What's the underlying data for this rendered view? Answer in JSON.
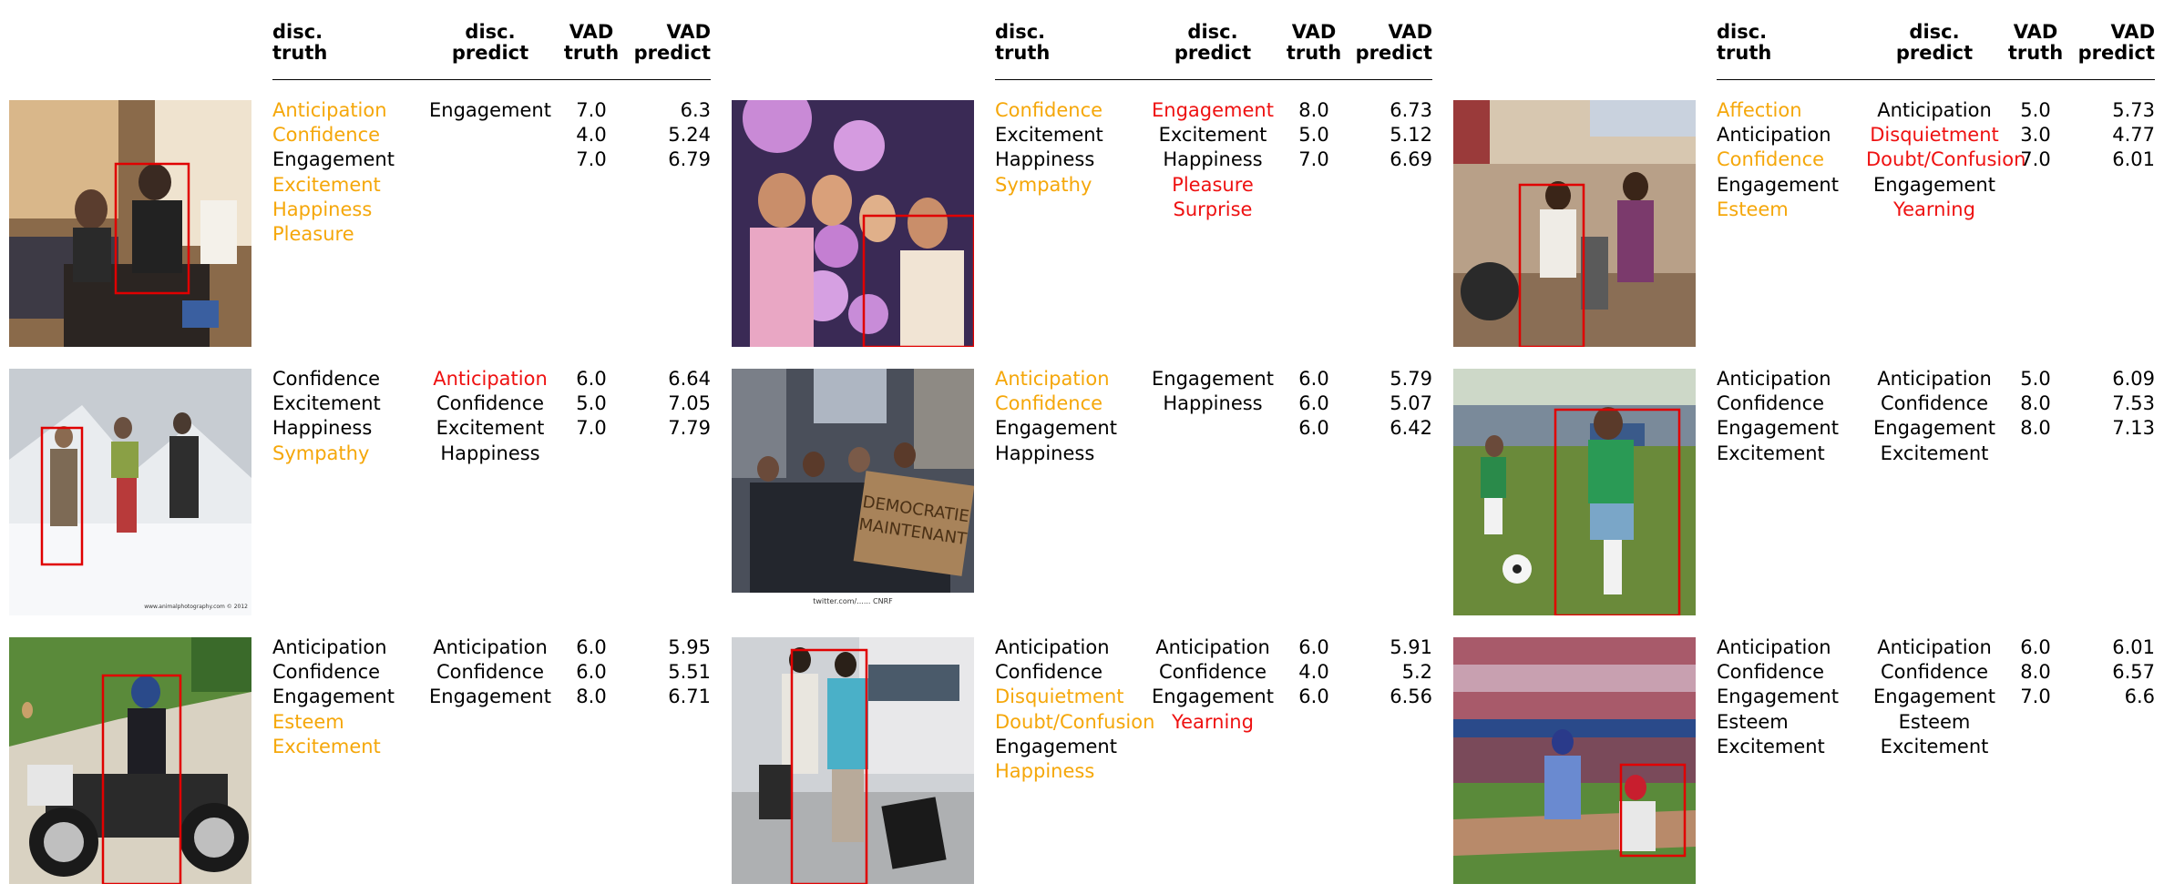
{
  "colors": {
    "mismatch_truth": "#f5a70a",
    "mismatch_predict": "#ee1111",
    "normal": "#000000"
  },
  "header": {
    "disc_truth": [
      "disc.",
      "truth"
    ],
    "disc_predict": [
      "disc.",
      "predict"
    ],
    "vad_truth": [
      "VAD",
      "truth"
    ],
    "vad_predict": [
      "VAD",
      "predict"
    ]
  },
  "panels": [
    {
      "truth": [
        {
          "t": "Anticipation",
          "s": "orange"
        },
        {
          "t": "Confidence",
          "s": "orange"
        },
        {
          "t": "Engagement",
          "s": ""
        },
        {
          "t": "Excitement",
          "s": "orange"
        },
        {
          "t": "Happiness",
          "s": "orange"
        },
        {
          "t": "Pleasure",
          "s": "orange"
        }
      ],
      "predict": [
        {
          "t": "Engagement",
          "s": ""
        }
      ],
      "vad_truth": [
        "7.0",
        "4.0",
        "7.0"
      ],
      "vad_predict": [
        "6.3",
        "5.24",
        "6.79"
      ]
    },
    {
      "truth": [
        {
          "t": "Confidence",
          "s": "orange"
        },
        {
          "t": "Excitement",
          "s": ""
        },
        {
          "t": "Happiness",
          "s": ""
        },
        {
          "t": "Sympathy",
          "s": "orange"
        }
      ],
      "predict": [
        {
          "t": "Engagement",
          "s": "red"
        },
        {
          "t": "Excitement",
          "s": ""
        },
        {
          "t": "Happiness",
          "s": ""
        },
        {
          "t": "Pleasure",
          "s": "red"
        },
        {
          "t": "Surprise",
          "s": "red"
        }
      ],
      "vad_truth": [
        "8.0",
        "5.0",
        "7.0"
      ],
      "vad_predict": [
        "6.73",
        "5.12",
        "6.69"
      ]
    },
    {
      "truth": [
        {
          "t": "Affection",
          "s": "orange"
        },
        {
          "t": "Anticipation",
          "s": ""
        },
        {
          "t": "Confidence",
          "s": "orange"
        },
        {
          "t": "Engagement",
          "s": ""
        },
        {
          "t": "Esteem",
          "s": "orange"
        }
      ],
      "predict": [
        {
          "t": "Anticipation",
          "s": ""
        },
        {
          "t": "Disquietment",
          "s": "red"
        },
        {
          "t": "Doubt/Confusion",
          "s": "red"
        },
        {
          "t": "Engagement",
          "s": ""
        },
        {
          "t": "Yearning",
          "s": "red"
        }
      ],
      "vad_truth": [
        "5.0",
        "3.0",
        "7.0"
      ],
      "vad_predict": [
        "5.73",
        "4.77",
        "6.01"
      ]
    },
    {
      "truth": [
        {
          "t": "Confidence",
          "s": ""
        },
        {
          "t": "Excitement",
          "s": ""
        },
        {
          "t": "Happiness",
          "s": ""
        },
        {
          "t": "Sympathy",
          "s": "orange"
        }
      ],
      "predict": [
        {
          "t": "Anticipation",
          "s": "red"
        },
        {
          "t": "Confidence",
          "s": ""
        },
        {
          "t": "Excitement",
          "s": ""
        },
        {
          "t": "Happiness",
          "s": ""
        }
      ],
      "vad_truth": [
        "6.0",
        "5.0",
        "7.0"
      ],
      "vad_predict": [
        "6.64",
        "7.05",
        "7.79"
      ],
      "caption": "www.animalphotography.com © 2012"
    },
    {
      "truth": [
        {
          "t": "Anticipation",
          "s": "orange"
        },
        {
          "t": "Confidence",
          "s": "orange"
        },
        {
          "t": "Engagement",
          "s": ""
        },
        {
          "t": "Happiness",
          "s": ""
        }
      ],
      "predict": [
        {
          "t": "Engagement",
          "s": ""
        },
        {
          "t": "Happiness",
          "s": ""
        }
      ],
      "vad_truth": [
        "6.0",
        "6.0",
        "6.0"
      ],
      "vad_predict": [
        "5.79",
        "5.07",
        "6.42"
      ],
      "caption": "twitter.com/......  CNRF"
    },
    {
      "truth": [
        {
          "t": "Anticipation",
          "s": ""
        },
        {
          "t": "Confidence",
          "s": ""
        },
        {
          "t": "Engagement",
          "s": ""
        },
        {
          "t": "Excitement",
          "s": ""
        }
      ],
      "predict": [
        {
          "t": "Anticipation",
          "s": ""
        },
        {
          "t": "Confidence",
          "s": ""
        },
        {
          "t": "Engagement",
          "s": ""
        },
        {
          "t": "Excitement",
          "s": ""
        }
      ],
      "vad_truth": [
        "5.0",
        "8.0",
        "8.0"
      ],
      "vad_predict": [
        "6.09",
        "7.53",
        "7.13"
      ]
    },
    {
      "truth": [
        {
          "t": "Anticipation",
          "s": ""
        },
        {
          "t": "Confidence",
          "s": ""
        },
        {
          "t": "Engagement",
          "s": ""
        },
        {
          "t": "Esteem",
          "s": "orange"
        },
        {
          "t": "Excitement",
          "s": "orange"
        }
      ],
      "predict": [
        {
          "t": "Anticipation",
          "s": ""
        },
        {
          "t": "Confidence",
          "s": ""
        },
        {
          "t": "Engagement",
          "s": ""
        }
      ],
      "vad_truth": [
        "6.0",
        "6.0",
        "8.0"
      ],
      "vad_predict": [
        "5.95",
        "5.51",
        "6.71"
      ]
    },
    {
      "truth": [
        {
          "t": "Anticipation",
          "s": ""
        },
        {
          "t": "Confidence",
          "s": ""
        },
        {
          "t": "Disquietment",
          "s": "orange"
        },
        {
          "t": "Doubt/Confusion",
          "s": "orange"
        },
        {
          "t": "Engagement",
          "s": ""
        },
        {
          "t": "Happiness",
          "s": "orange"
        }
      ],
      "predict": [
        {
          "t": "Anticipation",
          "s": ""
        },
        {
          "t": "Confidence",
          "s": ""
        },
        {
          "t": "Engagement",
          "s": ""
        },
        {
          "t": "Yearning",
          "s": "red"
        }
      ],
      "vad_truth": [
        "6.0",
        "4.0",
        "6.0"
      ],
      "vad_predict": [
        "5.91",
        "5.2",
        "6.56"
      ]
    },
    {
      "truth": [
        {
          "t": "Anticipation",
          "s": ""
        },
        {
          "t": "Confidence",
          "s": ""
        },
        {
          "t": "Engagement",
          "s": ""
        },
        {
          "t": "Esteem",
          "s": ""
        },
        {
          "t": "Excitement",
          "s": ""
        }
      ],
      "predict": [
        {
          "t": "Anticipation",
          "s": ""
        },
        {
          "t": "Confidence",
          "s": ""
        },
        {
          "t": "Engagement",
          "s": ""
        },
        {
          "t": "Esteem",
          "s": ""
        },
        {
          "t": "Excitement",
          "s": ""
        }
      ],
      "vad_truth": [
        "6.0",
        "8.0",
        "7.0"
      ],
      "vad_predict": [
        "6.01",
        "6.57",
        "6.6"
      ]
    }
  ]
}
